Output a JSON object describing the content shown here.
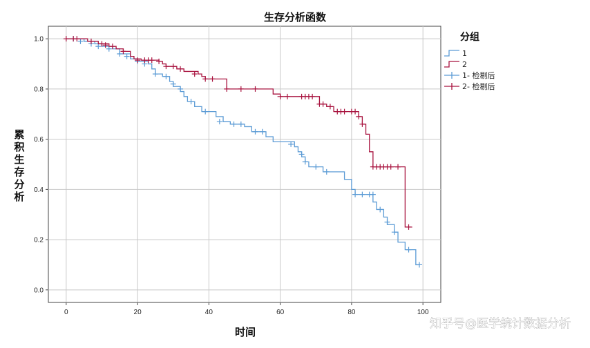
{
  "chart_data": {
    "type": "line",
    "title": "生存分析函数",
    "xlabel": "时间",
    "ylabel": "累积生存分析",
    "xlim": [
      -5,
      105
    ],
    "ylim": [
      -0.05,
      1.05
    ],
    "x_ticks": [
      "0",
      "20",
      "40",
      "60",
      "80",
      "100"
    ],
    "y_ticks": [
      "0.0",
      "0.2",
      "0.4",
      "0.6",
      "0.8",
      "1.0"
    ],
    "grid": true,
    "legend_title": "分组",
    "legend_position": "right",
    "series": [
      {
        "name": "1",
        "color": "#5b9bd5",
        "steps": [
          [
            0,
            1.0
          ],
          [
            5,
            0.99
          ],
          [
            8,
            0.98
          ],
          [
            10,
            0.97
          ],
          [
            13,
            0.96
          ],
          [
            15,
            0.94
          ],
          [
            18,
            0.92
          ],
          [
            20,
            0.91
          ],
          [
            23,
            0.9
          ],
          [
            24,
            0.88
          ],
          [
            25,
            0.86
          ],
          [
            27,
            0.85
          ],
          [
            29,
            0.83
          ],
          [
            30,
            0.81
          ],
          [
            32,
            0.79
          ],
          [
            33,
            0.77
          ],
          [
            34,
            0.75
          ],
          [
            36,
            0.73
          ],
          [
            38,
            0.71
          ],
          [
            42,
            0.69
          ],
          [
            44,
            0.67
          ],
          [
            46,
            0.66
          ],
          [
            50,
            0.65
          ],
          [
            52,
            0.63
          ],
          [
            56,
            0.61
          ],
          [
            58,
            0.59
          ],
          [
            64,
            0.57
          ],
          [
            65,
            0.55
          ],
          [
            66,
            0.53
          ],
          [
            67,
            0.51
          ],
          [
            68,
            0.49
          ],
          [
            72,
            0.47
          ],
          [
            78,
            0.44
          ],
          [
            80,
            0.4
          ],
          [
            81,
            0.38
          ],
          [
            86,
            0.35
          ],
          [
            87,
            0.32
          ],
          [
            89,
            0.29
          ],
          [
            90,
            0.26
          ],
          [
            92,
            0.23
          ],
          [
            93,
            0.19
          ],
          [
            95,
            0.16
          ],
          [
            98,
            0.1
          ],
          [
            99,
            0.1
          ]
        ],
        "censored": [
          [
            2,
            1.0
          ],
          [
            4,
            0.99
          ],
          [
            7,
            0.98
          ],
          [
            9,
            0.97
          ],
          [
            12,
            0.96
          ],
          [
            15,
            0.94
          ],
          [
            17,
            0.93
          ],
          [
            20,
            0.91
          ],
          [
            22,
            0.9
          ],
          [
            25,
            0.86
          ],
          [
            28,
            0.85
          ],
          [
            30,
            0.82
          ],
          [
            32,
            0.8
          ],
          [
            35,
            0.75
          ],
          [
            39,
            0.71
          ],
          [
            43,
            0.67
          ],
          [
            47,
            0.66
          ],
          [
            49,
            0.66
          ],
          [
            53,
            0.63
          ],
          [
            55,
            0.63
          ],
          [
            63,
            0.58
          ],
          [
            66,
            0.54
          ],
          [
            67,
            0.51
          ],
          [
            70,
            0.49
          ],
          [
            73,
            0.47
          ],
          [
            81,
            0.38
          ],
          [
            83,
            0.38
          ],
          [
            85,
            0.38
          ],
          [
            86,
            0.38
          ],
          [
            88,
            0.32
          ],
          [
            90,
            0.27
          ],
          [
            92,
            0.23
          ],
          [
            96,
            0.16
          ],
          [
            99,
            0.1
          ]
        ]
      },
      {
        "name": "2",
        "color": "#a8123e",
        "steps": [
          [
            0,
            1.0
          ],
          [
            6,
            0.99
          ],
          [
            9,
            0.98
          ],
          [
            12,
            0.97
          ],
          [
            14,
            0.96
          ],
          [
            16,
            0.95
          ],
          [
            18,
            0.93
          ],
          [
            19,
            0.92
          ],
          [
            21,
            0.915
          ],
          [
            26,
            0.91
          ],
          [
            27,
            0.9
          ],
          [
            28,
            0.89
          ],
          [
            31,
            0.88
          ],
          [
            33,
            0.87
          ],
          [
            37,
            0.86
          ],
          [
            38,
            0.85
          ],
          [
            39,
            0.84
          ],
          [
            45,
            0.8
          ],
          [
            58,
            0.78
          ],
          [
            60,
            0.77
          ],
          [
            71,
            0.74
          ],
          [
            73,
            0.73
          ],
          [
            75,
            0.71
          ],
          [
            82,
            0.69
          ],
          [
            83,
            0.66
          ],
          [
            84,
            0.62
          ],
          [
            85,
            0.55
          ],
          [
            86,
            0.49
          ],
          [
            95,
            0.25
          ],
          [
            97,
            0.25
          ]
        ],
        "censored": [
          [
            0,
            1.0
          ],
          [
            2,
            1.0
          ],
          [
            3,
            1.0
          ],
          [
            7,
            0.99
          ],
          [
            10,
            0.98
          ],
          [
            11,
            0.975
          ],
          [
            13,
            0.97
          ],
          [
            16,
            0.95
          ],
          [
            20,
            0.915
          ],
          [
            22,
            0.915
          ],
          [
            23,
            0.915
          ],
          [
            24,
            0.915
          ],
          [
            26,
            0.91
          ],
          [
            28,
            0.89
          ],
          [
            30,
            0.89
          ],
          [
            32,
            0.88
          ],
          [
            36,
            0.86
          ],
          [
            39,
            0.84
          ],
          [
            41,
            0.84
          ],
          [
            45,
            0.8
          ],
          [
            49,
            0.8
          ],
          [
            53,
            0.8
          ],
          [
            60,
            0.77
          ],
          [
            62,
            0.77
          ],
          [
            66,
            0.77
          ],
          [
            67,
            0.77
          ],
          [
            68,
            0.77
          ],
          [
            69,
            0.77
          ],
          [
            71,
            0.74
          ],
          [
            72,
            0.74
          ],
          [
            74,
            0.73
          ],
          [
            76,
            0.71
          ],
          [
            77,
            0.71
          ],
          [
            78,
            0.71
          ],
          [
            80,
            0.71
          ],
          [
            81,
            0.71
          ],
          [
            82,
            0.69
          ],
          [
            83,
            0.66
          ],
          [
            86,
            0.49
          ],
          [
            87,
            0.49
          ],
          [
            88,
            0.49
          ],
          [
            89,
            0.49
          ],
          [
            90,
            0.49
          ],
          [
            91,
            0.49
          ],
          [
            93,
            0.49
          ],
          [
            96,
            0.25
          ]
        ]
      }
    ],
    "legend_entries": [
      {
        "label": "1",
        "symbol": "step",
        "color": "#5b9bd5"
      },
      {
        "label": "2",
        "symbol": "step",
        "color": "#a8123e"
      },
      {
        "label": "1- 检剔后",
        "symbol": "plus",
        "color": "#5b9bd5"
      },
      {
        "label": "2- 检剔后",
        "symbol": "plus",
        "color": "#a8123e"
      }
    ]
  },
  "watermark": "知乎号@医学统计数据分析"
}
